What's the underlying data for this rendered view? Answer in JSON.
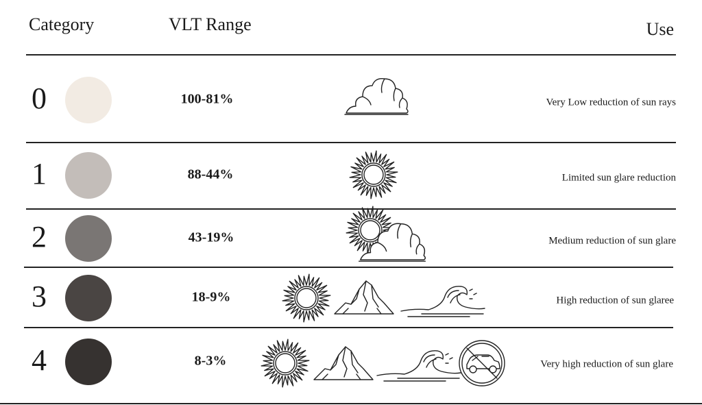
{
  "header": {
    "category": "Category",
    "range": "VLT Range",
    "use": "Use"
  },
  "rows": [
    {
      "category": "0",
      "range": "100-81%",
      "use": "Very Low reduction of sun rays",
      "color": "#f2ebe3"
    },
    {
      "category": "1",
      "range": "88-44%",
      "use": "Limited  sun glare reduction",
      "color": "#c3bdb9"
    },
    {
      "category": "2",
      "range": "43-19%",
      "use": "Medium reduction of sun glare",
      "color": "#7a7674"
    },
    {
      "category": "3",
      "range": "18-9%",
      "use": "High reduction of sun glaree",
      "color": "#4a4543"
    },
    {
      "category": "4",
      "range": "8-3%",
      "use": "Very high reduction of sun glare",
      "color": "#363230"
    }
  ]
}
